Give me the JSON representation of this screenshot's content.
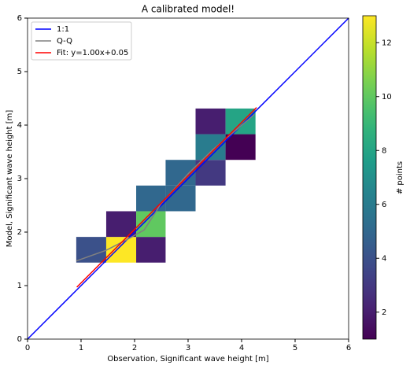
{
  "chart_data": {
    "type": "hist2d",
    "title": "A calibrated model!",
    "xlabel": "Observation, Significant wave height [m]",
    "ylabel": "Model, Significant wave height [m]",
    "xlim": [
      0,
      6
    ],
    "ylim": [
      0,
      6
    ],
    "xticks": [
      0,
      1,
      2,
      3,
      4,
      5,
      6
    ],
    "yticks": [
      0,
      1,
      2,
      3,
      4,
      5,
      6
    ],
    "x_bins": [
      0.91,
      1.47,
      2.03,
      2.58,
      3.14,
      3.7,
      4.26
    ],
    "y_bins": [
      1.43,
      1.91,
      2.39,
      2.87,
      3.35,
      3.83,
      4.31
    ],
    "counts": [
      [
        4,
        13,
        2,
        null,
        null,
        null
      ],
      [
        null,
        2,
        10,
        null,
        null,
        null
      ],
      [
        null,
        null,
        5,
        5,
        null,
        null
      ],
      [
        null,
        null,
        null,
        5,
        3,
        null
      ],
      [
        null,
        null,
        null,
        null,
        6,
        1
      ],
      [
        null,
        null,
        null,
        null,
        2,
        8
      ]
    ],
    "colormap": "viridis",
    "clim": [
      1,
      13
    ],
    "colorbar_label": "# points",
    "cticks": [
      2,
      4,
      6,
      8,
      10,
      12
    ],
    "legend": "upper left",
    "series": [
      {
        "name": "1:1",
        "color": "#0000ff",
        "x": [
          0,
          6
        ],
        "values": [
          0,
          6
        ]
      },
      {
        "name": "Q-Q",
        "color": "#808080",
        "x": [
          0.91,
          1.47,
          1.84,
          2.18,
          2.5,
          3.01,
          3.46,
          3.9,
          4.24
        ],
        "values": [
          1.46,
          1.66,
          1.85,
          2.04,
          2.54,
          3.1,
          3.54,
          3.91,
          4.2
        ]
      },
      {
        "name": "Fit: y=1.00x+0.05",
        "color": "#ff0000",
        "x": [
          0.92,
          4.28
        ],
        "values": [
          0.97,
          4.33
        ]
      }
    ]
  }
}
